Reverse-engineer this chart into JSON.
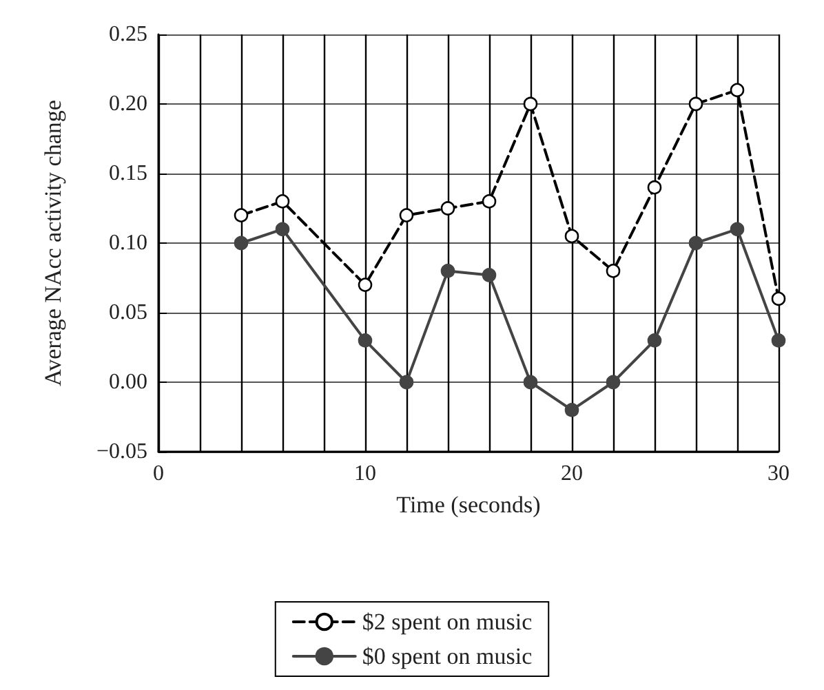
{
  "chart_data": {
    "type": "line",
    "xlabel": "Time (seconds)",
    "ylabel": "Average NAcc activity change",
    "xlim": [
      0,
      30
    ],
    "xticks": [
      0,
      {
        "value": 2,
        "label": null
      },
      {
        "value": 4,
        "label": null
      },
      {
        "value": 6,
        "label": null
      },
      {
        "value": 8,
        "label": null
      },
      10,
      {
        "value": 12,
        "label": null
      },
      {
        "value": 14,
        "label": null
      },
      {
        "value": 16,
        "label": null
      },
      {
        "value": 18,
        "label": null
      },
      20,
      {
        "value": 22,
        "label": null
      },
      {
        "value": 24,
        "label": null
      },
      {
        "value": 26,
        "label": null
      },
      {
        "value": 28,
        "label": null
      },
      30
    ],
    "ylim": [
      -0.05,
      0.25
    ],
    "yticks": [
      {
        "value": -0.05,
        "label": "−0.05"
      },
      {
        "value": 0,
        "label": "0.00"
      },
      0.05,
      {
        "value": 0.1,
        "label": "0.10"
      },
      0.15,
      {
        "value": 0.2,
        "label": "0.20"
      },
      0.25
    ],
    "x": [
      4,
      6,
      10,
      12,
      14,
      16,
      18,
      20,
      22,
      24,
      26,
      28,
      30
    ],
    "series": [
      {
        "name": "$2 spent on music",
        "color": "#000000",
        "line_style": "dashed",
        "values": [
          0.12,
          0.13,
          0.07,
          0.12,
          0.125,
          0.13,
          0.2,
          0.105,
          0.08,
          0.14,
          0.2,
          0.21,
          0.06
        ]
      },
      {
        "name": "$0 spent on music",
        "color": "#444444",
        "line_style": "solid",
        "values": [
          0.1,
          0.11,
          0.03,
          0,
          0.08,
          0.077,
          0,
          -0.02,
          0,
          0.03,
          0.1,
          0.11,
          0.03
        ]
      }
    ],
    "grid": true,
    "legend": "bottom",
    "marker": "circle"
  }
}
